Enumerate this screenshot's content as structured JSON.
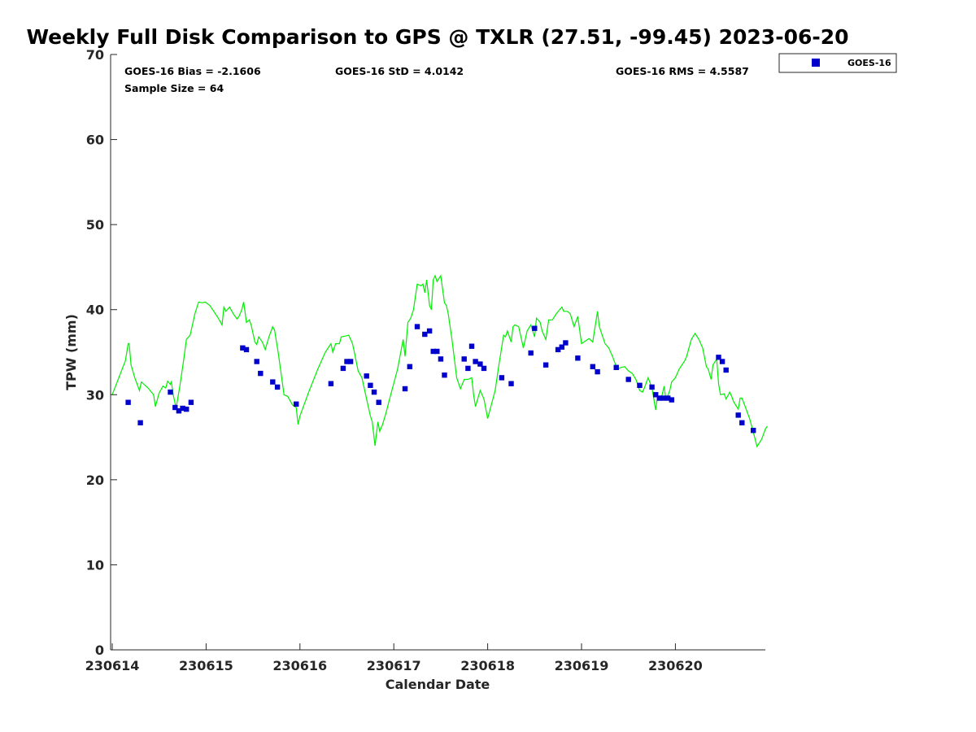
{
  "chart_data": {
    "type": "scatter",
    "title": "Weekly Full Disk Comparison to GPS @ TXLR (27.51, -99.45) 2023-06-20",
    "xlabel": "Calendar Date",
    "ylabel": "TPW (mm)",
    "xlim": [
      "230614",
      "230621"
    ],
    "ylim": [
      0,
      70
    ],
    "yticks": [
      "0",
      "10",
      "20",
      "30",
      "40",
      "50",
      "60",
      "70"
    ],
    "xticks": [
      "230614",
      "230615",
      "230616",
      "230617",
      "230618",
      "230619",
      "230620"
    ],
    "grid": false,
    "legend": {
      "position": "outside-top-right",
      "entries": [
        "GOES-16"
      ]
    },
    "stats": {
      "bias": "GOES-16 Bias = -2.1606",
      "std": "GOES-16 StD = 4.0142",
      "rms": "GOES-16 RMS = 4.5587",
      "sample_size": "Sample Size = 64"
    },
    "colors": {
      "goes": "#0000cc",
      "gps": "#00ee00"
    },
    "series": [
      {
        "name": "GOES-16",
        "kind": "markers",
        "points": [
          [
            0.17,
            29.1
          ],
          [
            0.3,
            26.7
          ],
          [
            0.62,
            30.3
          ],
          [
            0.67,
            28.5
          ],
          [
            0.71,
            28.1
          ],
          [
            0.75,
            28.4
          ],
          [
            0.79,
            28.3
          ],
          [
            0.84,
            29.1
          ],
          [
            1.39,
            35.5
          ],
          [
            1.43,
            35.3
          ],
          [
            1.54,
            33.9
          ],
          [
            1.58,
            32.5
          ],
          [
            1.71,
            31.5
          ],
          [
            1.76,
            30.9
          ],
          [
            1.96,
            28.9
          ],
          [
            2.33,
            31.3
          ],
          [
            2.46,
            33.1
          ],
          [
            2.5,
            33.9
          ],
          [
            2.54,
            33.9
          ],
          [
            2.71,
            32.2
          ],
          [
            2.75,
            31.1
          ],
          [
            2.79,
            30.3
          ],
          [
            2.84,
            29.1
          ],
          [
            3.12,
            30.7
          ],
          [
            3.17,
            33.3
          ],
          [
            3.25,
            38.0
          ],
          [
            3.33,
            37.1
          ],
          [
            3.38,
            37.5
          ],
          [
            3.42,
            35.1
          ],
          [
            3.46,
            35.1
          ],
          [
            3.5,
            34.2
          ],
          [
            3.54,
            32.3
          ],
          [
            3.75,
            34.2
          ],
          [
            3.79,
            33.1
          ],
          [
            3.83,
            35.7
          ],
          [
            3.87,
            33.9
          ],
          [
            3.92,
            33.6
          ],
          [
            3.96,
            33.1
          ],
          [
            4.15,
            32.0
          ],
          [
            4.25,
            31.3
          ],
          [
            4.46,
            34.9
          ],
          [
            4.5,
            37.8
          ],
          [
            4.62,
            33.5
          ],
          [
            4.75,
            35.3
          ],
          [
            4.79,
            35.6
          ],
          [
            4.83,
            36.1
          ],
          [
            4.96,
            34.3
          ],
          [
            5.12,
            33.3
          ],
          [
            5.17,
            32.7
          ],
          [
            5.37,
            33.2
          ],
          [
            5.5,
            31.8
          ],
          [
            5.62,
            31.1
          ],
          [
            5.75,
            30.9
          ],
          [
            5.79,
            30.0
          ],
          [
            5.83,
            29.6
          ],
          [
            5.87,
            29.6
          ],
          [
            5.92,
            29.6
          ],
          [
            5.96,
            29.4
          ],
          [
            6.46,
            34.4
          ],
          [
            6.5,
            33.9
          ],
          [
            6.54,
            32.9
          ],
          [
            6.67,
            27.6
          ],
          [
            6.71,
            26.7
          ],
          [
            6.83,
            25.8
          ]
        ]
      },
      {
        "name": "GPS",
        "kind": "line",
        "points": [
          [
            0.0,
            30.0
          ],
          [
            0.14,
            34.0
          ],
          [
            0.17,
            36.0
          ],
          [
            0.18,
            36.0
          ],
          [
            0.2,
            33.5
          ],
          [
            0.24,
            32.0
          ],
          [
            0.29,
            30.5
          ],
          [
            0.31,
            31.5
          ],
          [
            0.38,
            30.8
          ],
          [
            0.44,
            30.0
          ],
          [
            0.46,
            28.6
          ],
          [
            0.5,
            30.2
          ],
          [
            0.54,
            31.0
          ],
          [
            0.57,
            30.8
          ],
          [
            0.59,
            31.6
          ],
          [
            0.62,
            31.2
          ],
          [
            0.63,
            31.5
          ],
          [
            0.65,
            30.0
          ],
          [
            0.68,
            28.4
          ],
          [
            0.72,
            31.0
          ],
          [
            0.76,
            34.0
          ],
          [
            0.79,
            36.5
          ],
          [
            0.83,
            37.0
          ],
          [
            0.88,
            39.5
          ],
          [
            0.92,
            40.9
          ],
          [
            0.96,
            40.8
          ],
          [
            0.99,
            40.9
          ],
          [
            1.04,
            40.5
          ],
          [
            1.13,
            39.0
          ],
          [
            1.17,
            38.2
          ],
          [
            1.19,
            40.3
          ],
          [
            1.21,
            39.8
          ],
          [
            1.25,
            40.3
          ],
          [
            1.29,
            39.5
          ],
          [
            1.33,
            38.9
          ],
          [
            1.35,
            39.2
          ],
          [
            1.38,
            40.0
          ],
          [
            1.4,
            40.9
          ],
          [
            1.43,
            38.5
          ],
          [
            1.46,
            38.8
          ],
          [
            1.48,
            38.2
          ],
          [
            1.52,
            36.2
          ],
          [
            1.54,
            35.9
          ],
          [
            1.56,
            36.8
          ],
          [
            1.6,
            36.2
          ],
          [
            1.63,
            35.3
          ],
          [
            1.67,
            36.8
          ],
          [
            1.71,
            38.0
          ],
          [
            1.73,
            37.6
          ],
          [
            1.77,
            34.8
          ],
          [
            1.83,
            30.0
          ],
          [
            1.87,
            29.8
          ],
          [
            1.92,
            28.8
          ],
          [
            1.96,
            28.5
          ],
          [
            1.98,
            26.5
          ],
          [
            2.0,
            27.5
          ],
          [
            2.1,
            30.5
          ],
          [
            2.19,
            33.0
          ],
          [
            2.27,
            35.0
          ],
          [
            2.33,
            36.0
          ],
          [
            2.35,
            35.0
          ],
          [
            2.38,
            36.0
          ],
          [
            2.42,
            36.0
          ],
          [
            2.44,
            36.8
          ],
          [
            2.49,
            36.9
          ],
          [
            2.52,
            37.0
          ],
          [
            2.56,
            36.0
          ],
          [
            2.58,
            35.0
          ],
          [
            2.62,
            32.8
          ],
          [
            2.66,
            32.0
          ],
          [
            2.71,
            29.5
          ],
          [
            2.75,
            27.5
          ],
          [
            2.77,
            26.8
          ],
          [
            2.8,
            24.0
          ],
          [
            2.83,
            26.8
          ],
          [
            2.85,
            25.7
          ],
          [
            2.88,
            26.5
          ],
          [
            2.92,
            28.0
          ],
          [
            2.96,
            29.7
          ],
          [
            3.04,
            33.0
          ],
          [
            3.1,
            36.5
          ],
          [
            3.12,
            34.5
          ],
          [
            3.15,
            38.5
          ],
          [
            3.18,
            39.0
          ],
          [
            3.21,
            40.0
          ],
          [
            3.25,
            43.0
          ],
          [
            3.29,
            42.8
          ],
          [
            3.31,
            43.0
          ],
          [
            3.33,
            42.0
          ],
          [
            3.35,
            43.5
          ],
          [
            3.38,
            40.5
          ],
          [
            3.4,
            40.0
          ],
          [
            3.42,
            43.5
          ],
          [
            3.44,
            44.0
          ],
          [
            3.46,
            43.3
          ],
          [
            3.5,
            44.0
          ],
          [
            3.54,
            40.8
          ],
          [
            3.56,
            40.5
          ],
          [
            3.58,
            39.5
          ],
          [
            3.62,
            36.5
          ],
          [
            3.67,
            32.0
          ],
          [
            3.71,
            30.7
          ],
          [
            3.75,
            31.8
          ],
          [
            3.79,
            31.8
          ],
          [
            3.83,
            32.0
          ],
          [
            3.85,
            30.0
          ],
          [
            3.87,
            28.6
          ],
          [
            3.92,
            30.5
          ],
          [
            3.96,
            29.5
          ],
          [
            4.0,
            27.2
          ],
          [
            4.08,
            30.5
          ],
          [
            4.12,
            33.5
          ],
          [
            4.17,
            37.0
          ],
          [
            4.19,
            36.8
          ],
          [
            4.21,
            37.5
          ],
          [
            4.25,
            36.2
          ],
          [
            4.27,
            38.0
          ],
          [
            4.29,
            38.2
          ],
          [
            4.33,
            38.0
          ],
          [
            4.38,
            35.5
          ],
          [
            4.42,
            37.5
          ],
          [
            4.46,
            38.2
          ],
          [
            4.5,
            36.8
          ],
          [
            4.52,
            39.0
          ],
          [
            4.56,
            38.5
          ],
          [
            4.58,
            37.5
          ],
          [
            4.62,
            36.5
          ],
          [
            4.65,
            38.8
          ],
          [
            4.69,
            38.8
          ],
          [
            4.73,
            39.5
          ],
          [
            4.79,
            40.3
          ],
          [
            4.81,
            39.8
          ],
          [
            4.85,
            39.8
          ],
          [
            4.88,
            39.5
          ],
          [
            4.92,
            38.0
          ],
          [
            4.96,
            39.2
          ],
          [
            5.0,
            36.0
          ],
          [
            5.04,
            36.3
          ],
          [
            5.08,
            36.6
          ],
          [
            5.12,
            36.2
          ],
          [
            5.17,
            39.8
          ],
          [
            5.19,
            38.0
          ],
          [
            5.25,
            36.0
          ],
          [
            5.29,
            35.5
          ],
          [
            5.33,
            34.5
          ],
          [
            5.38,
            33.0
          ],
          [
            5.42,
            33.2
          ],
          [
            5.46,
            33.3
          ],
          [
            5.5,
            32.8
          ],
          [
            5.54,
            32.5
          ],
          [
            5.58,
            31.8
          ],
          [
            5.62,
            30.5
          ],
          [
            5.65,
            30.3
          ],
          [
            5.67,
            30.8
          ],
          [
            5.71,
            32.0
          ],
          [
            5.75,
            30.8
          ],
          [
            5.79,
            28.2
          ],
          [
            5.81,
            29.8
          ],
          [
            5.85,
            29.6
          ],
          [
            5.88,
            31.0
          ],
          [
            5.9,
            29.3
          ],
          [
            5.94,
            30.5
          ],
          [
            5.96,
            31.5
          ],
          [
            6.0,
            32.0
          ],
          [
            6.04,
            33.0
          ],
          [
            6.1,
            34.0
          ],
          [
            6.12,
            34.5
          ],
          [
            6.17,
            36.5
          ],
          [
            6.21,
            37.2
          ],
          [
            6.25,
            36.5
          ],
          [
            6.29,
            35.5
          ],
          [
            6.33,
            33.3
          ],
          [
            6.35,
            33.0
          ],
          [
            6.38,
            31.8
          ],
          [
            6.4,
            33.5
          ],
          [
            6.44,
            34.2
          ],
          [
            6.46,
            31.3
          ],
          [
            6.48,
            30.0
          ],
          [
            6.52,
            30.1
          ],
          [
            6.54,
            29.5
          ],
          [
            6.58,
            30.3
          ],
          [
            6.6,
            29.8
          ],
          [
            6.62,
            29.2
          ],
          [
            6.67,
            28.3
          ],
          [
            6.69,
            29.6
          ],
          [
            6.71,
            29.6
          ],
          [
            6.75,
            28.4
          ],
          [
            6.79,
            27.2
          ],
          [
            6.83,
            25.6
          ],
          [
            6.87,
            23.9
          ],
          [
            6.92,
            24.8
          ],
          [
            6.96,
            26.0
          ],
          [
            6.98,
            26.3
          ]
        ]
      }
    ]
  }
}
